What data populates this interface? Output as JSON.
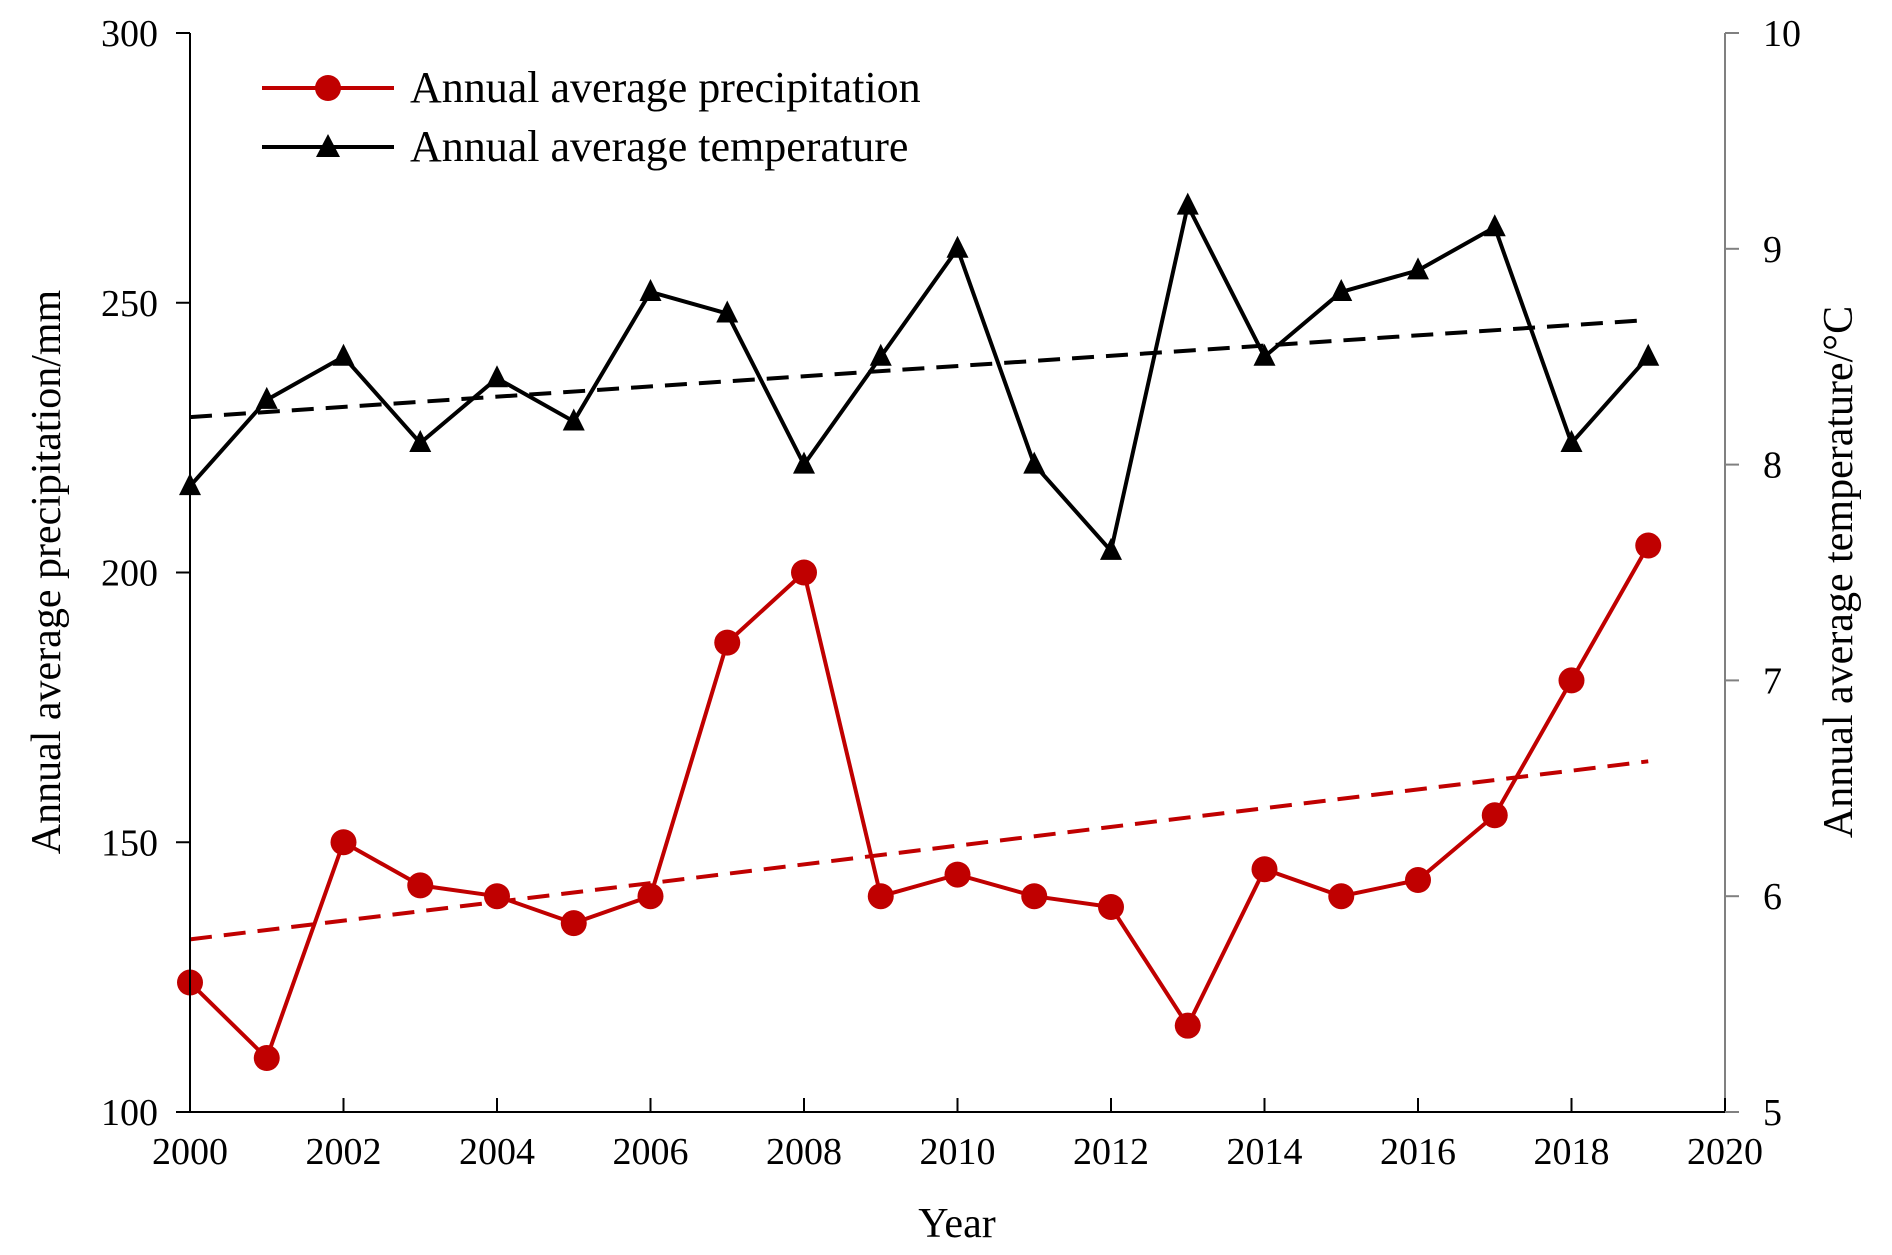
{
  "chart_data": {
    "type": "line",
    "title": "",
    "xlabel": "Year",
    "ylabel": "Annual average precipitation/mm",
    "y2label": "Annual average temperature/°C",
    "xlim": [
      2000,
      2020
    ],
    "ylim": [
      100,
      300
    ],
    "y2lim": [
      5,
      10
    ],
    "x_ticks": [
      2000,
      2002,
      2004,
      2006,
      2008,
      2010,
      2012,
      2014,
      2016,
      2018,
      2020
    ],
    "y_ticks": [
      100,
      150,
      200,
      250,
      300
    ],
    "y2_ticks": [
      5,
      6,
      7,
      8,
      9,
      10
    ],
    "grid": false,
    "legend_position": "top-left",
    "x": [
      2000,
      2001,
      2002,
      2003,
      2004,
      2005,
      2006,
      2007,
      2008,
      2009,
      2010,
      2011,
      2012,
      2013,
      2014,
      2015,
      2016,
      2017,
      2018,
      2019
    ],
    "series": [
      {
        "name": "Annual average precipitation",
        "axis": "left",
        "color": "#c00000",
        "marker": "circle",
        "values": [
          124,
          110,
          150,
          142,
          140,
          135,
          140,
          187,
          200,
          140,
          144,
          140,
          138,
          116,
          145,
          140,
          143,
          155,
          180,
          205
        ]
      },
      {
        "name": "Annual average temperature",
        "axis": "right",
        "color": "#000000",
        "marker": "triangle",
        "values": [
          7.9,
          8.3,
          8.5,
          8.1,
          8.4,
          8.2,
          8.8,
          8.7,
          8.0,
          8.5,
          9.0,
          8.0,
          7.6,
          9.2,
          8.5,
          8.8,
          8.9,
          9.1,
          8.1,
          8.5
        ]
      }
    ],
    "trendlines": [
      {
        "series": "Annual average precipitation",
        "axis": "left",
        "color": "#c00000",
        "x": [
          2000,
          2019
        ],
        "values": [
          132,
          165
        ]
      },
      {
        "series": "Annual average temperature",
        "axis": "right",
        "color": "#000000",
        "x": [
          2000,
          2019
        ],
        "values": [
          8.22,
          8.67
        ]
      }
    ]
  }
}
